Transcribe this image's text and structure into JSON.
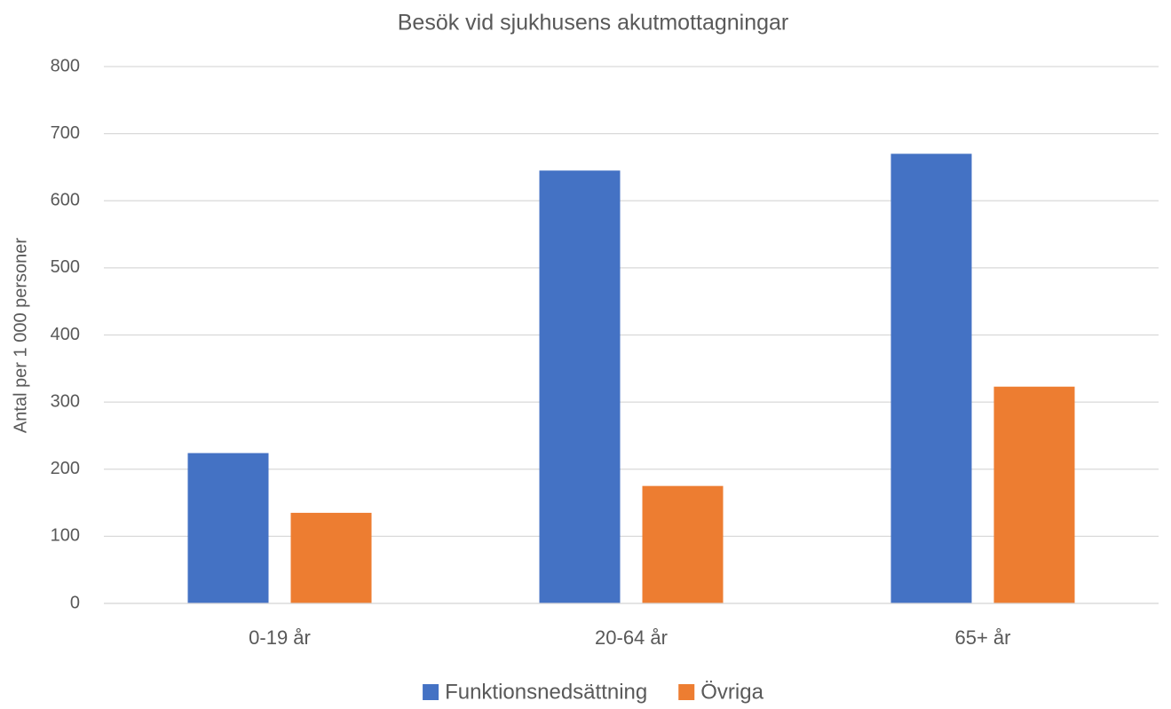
{
  "chart_data": {
    "type": "bar",
    "title": "Besök vid sjukhusens akutmottagningar",
    "y_label": "Antal per 1 000 personer",
    "categories": [
      "0-19 år",
      "20-64 år",
      "65+ år"
    ],
    "series": [
      {
        "name": "Funktionsnedsättning",
        "color": "#4472c4",
        "values": [
          224,
          645,
          670
        ]
      },
      {
        "name": "Övriga",
        "color": "#ed7d31",
        "values": [
          135,
          175,
          323
        ]
      }
    ],
    "ylim": [
      0,
      800
    ],
    "yticks": [
      0,
      100,
      200,
      300,
      400,
      500,
      600,
      700,
      800
    ],
    "grid": true,
    "legend": "bottom"
  }
}
